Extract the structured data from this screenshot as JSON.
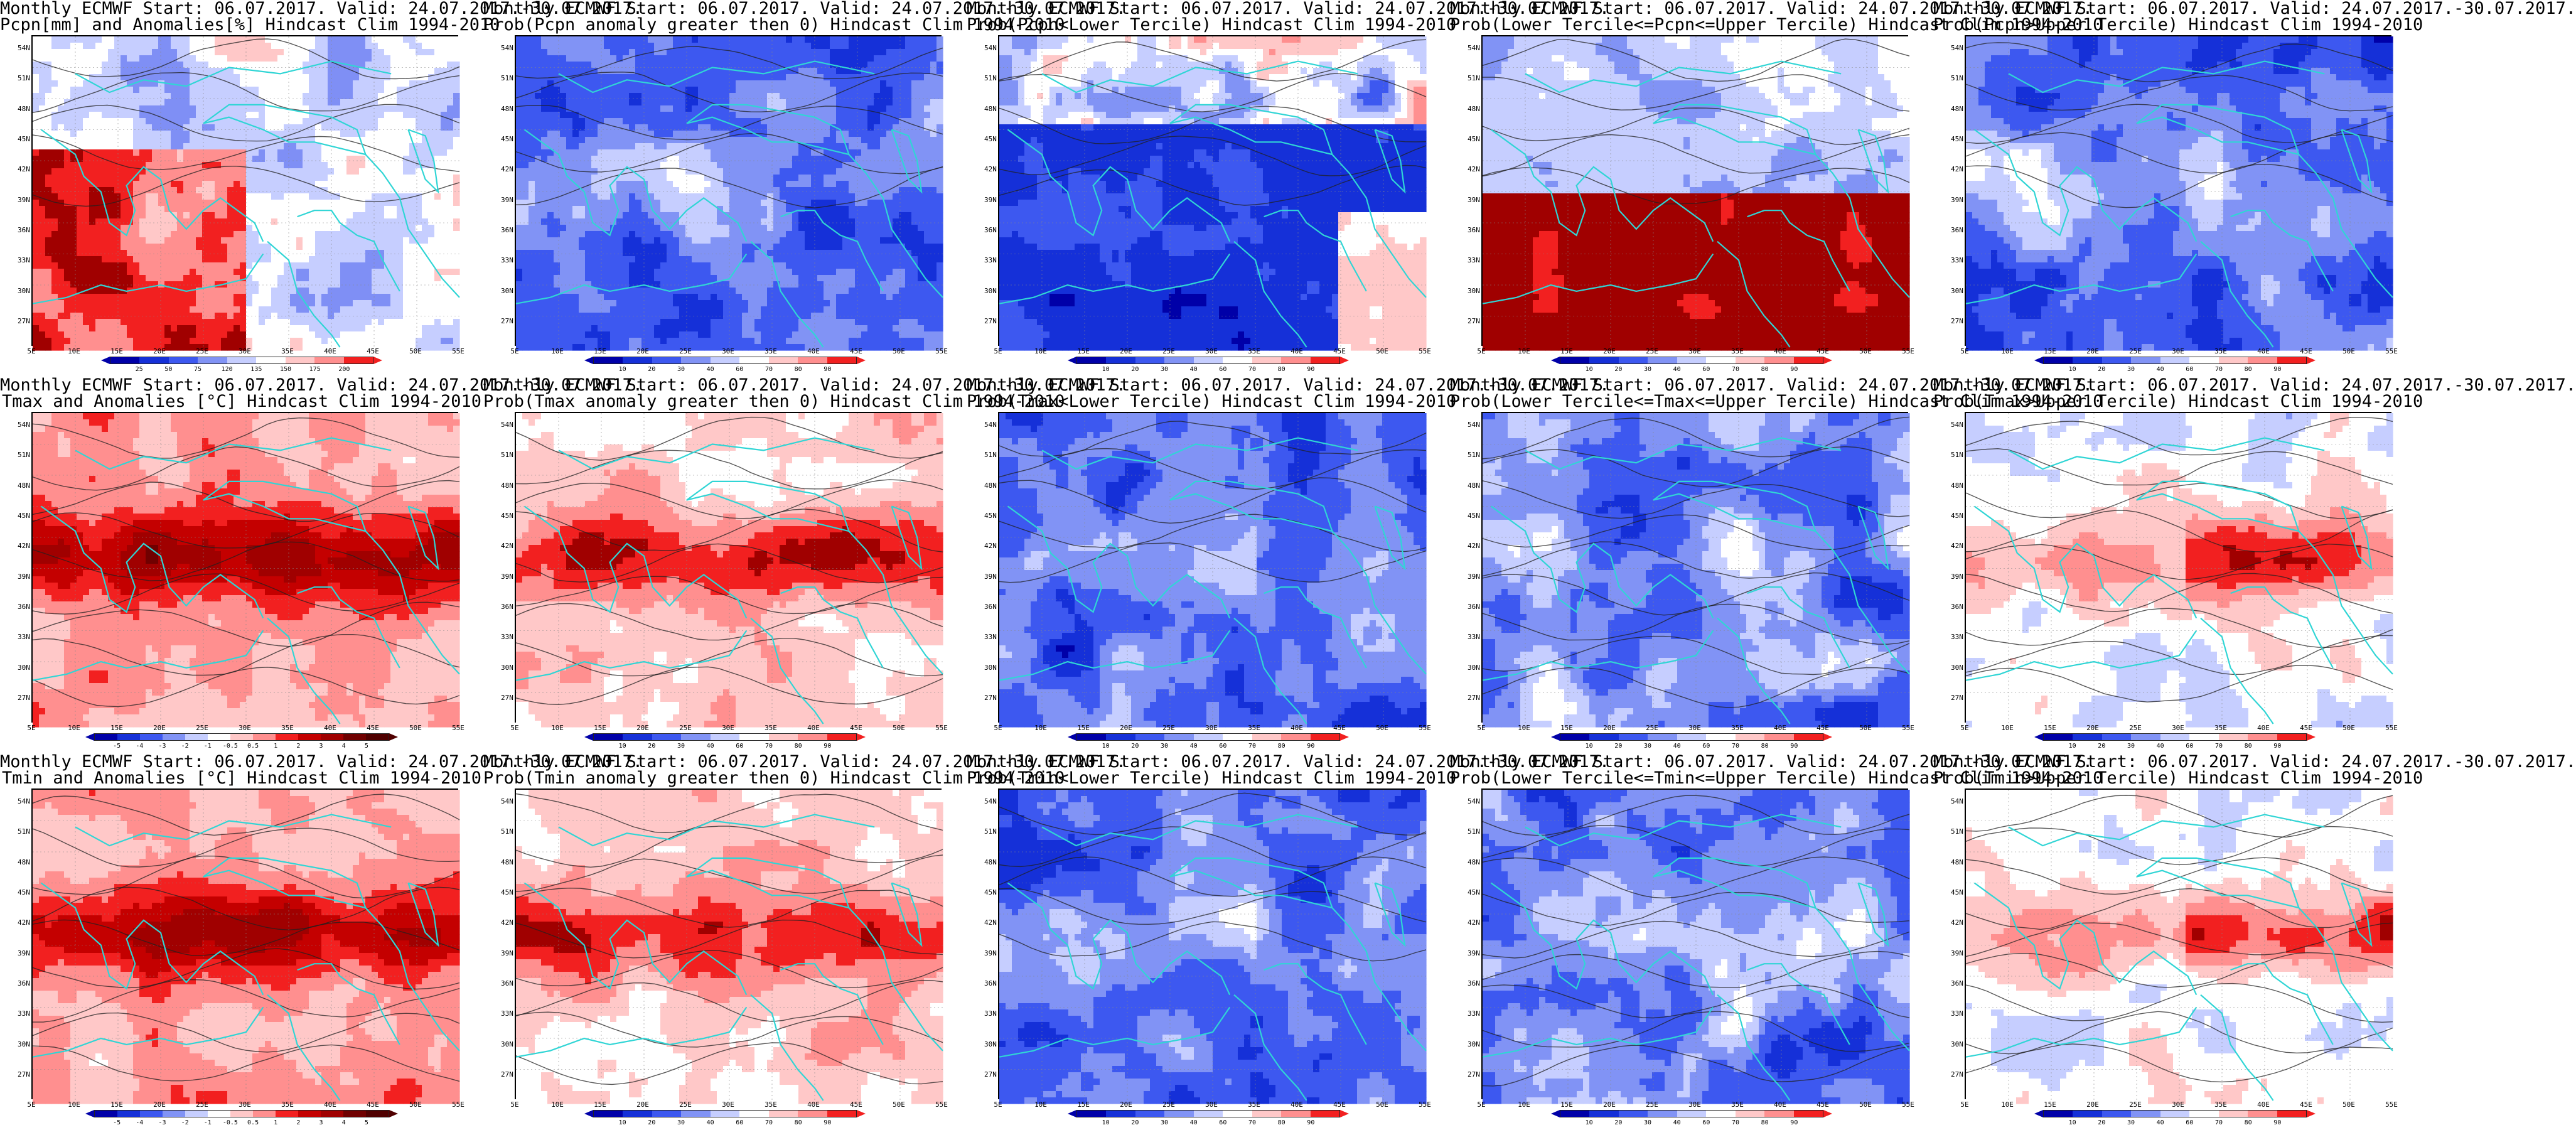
{
  "panels": [
    {
      "title1": "Monthly ECMWF Start: 06.07.2017. Valid: 24.07.2017.-30.07.2017.",
      "title2": "Pcpn[mm] and Anomalies[%] Hindcast Clim 1994-2010",
      "scheme": "precip_anom",
      "ticks": [
        "25",
        "50",
        "75",
        "120",
        "135",
        "150",
        "175",
        "200"
      ]
    },
    {
      "title1": "Monthly ECMWF Start: 06.07.2017. Valid: 24.07.2017.-30.07.2017.",
      "title2": "Prob(Pcpn anomaly greater then 0) Hindcast Clim 1994-2010",
      "scheme": "prob_low",
      "ticks": [
        "10",
        "20",
        "30",
        "40",
        "60",
        "70",
        "80",
        "90"
      ]
    },
    {
      "title1": "Monthly ECMWF Start: 06.07.2017. Valid: 24.07.2017.-30.07.2017.",
      "title2": "Prob(Pcpn<Lower Tercile) Hindcast Clim 1994-2010",
      "scheme": "prob_vlow",
      "ticks": [
        "10",
        "20",
        "30",
        "40",
        "60",
        "70",
        "80",
        "90"
      ]
    },
    {
      "title1": "Monthly ECMWF Start: 06.07.2017. Valid: 24.07.2017.-30.07.2017.",
      "title2": "Prob(Lower Tercile<=Pcpn<=Upper Tercile) Hindcast Clim 1994-2010",
      "scheme": "prob_mid_red",
      "ticks": [
        "10",
        "20",
        "30",
        "40",
        "60",
        "70",
        "80",
        "90"
      ]
    },
    {
      "title1": "Monthly ECMWF Start: 06.07.2017. Valid: 24.07.2017.-30.07.2017.",
      "title2": "Prob(Pcpn>Upper Tercile) Hindcast Clim 1994-2010",
      "scheme": "prob_low",
      "ticks": [
        "10",
        "20",
        "30",
        "40",
        "60",
        "70",
        "80",
        "90"
      ]
    },
    {
      "title1": "Monthly ECMWF Start: 06.07.2017. Valid: 24.07.2017.-30.07.2017.",
      "title2": "Tmax and Anomalies [°C] Hindcast Clim 1994-2010",
      "scheme": "temp_warm",
      "ticks": [
        "-5",
        "-4",
        "-3",
        "-2",
        "-1",
        "-0.5",
        "0.5",
        "1",
        "2",
        "3",
        "4",
        "5"
      ]
    },
    {
      "title1": "Monthly ECMWF Start: 06.07.2017. Valid: 24.07.2017.-30.07.2017.",
      "title2": "Prob(Tmax anomaly greater then 0) Hindcast Clim 1994-2010",
      "scheme": "prob_high",
      "ticks": [
        "10",
        "20",
        "30",
        "40",
        "60",
        "70",
        "80",
        "90"
      ]
    },
    {
      "title1": "Monthly ECMWF Start: 06.07.2017. Valid: 24.07.2017.-30.07.2017.",
      "title2": "Prob(Tmax<Lower Tercile) Hindcast Clim 1994-2010",
      "scheme": "prob_low",
      "ticks": [
        "10",
        "20",
        "30",
        "40",
        "60",
        "70",
        "80",
        "90"
      ]
    },
    {
      "title1": "Monthly ECMWF Start: 06.07.2017. Valid: 24.07.2017.-30.07.2017.",
      "title2": "Prob(Lower Tercile<=Tmax<=Upper Tercile) Hindcast Clim 1994-2010",
      "scheme": "prob_mix",
      "ticks": [
        "10",
        "20",
        "30",
        "40",
        "60",
        "70",
        "80",
        "90"
      ]
    },
    {
      "title1": "Monthly ECMWF Start: 06.07.2017. Valid: 24.07.2017.-30.07.2017.",
      "title2": "Prob(Tmax>Upper Tercile) Hindcast Clim 1994-2010",
      "scheme": "prob_upper",
      "ticks": [
        "10",
        "20",
        "30",
        "40",
        "60",
        "70",
        "80",
        "90"
      ]
    },
    {
      "title1": "Monthly ECMWF Start: 06.07.2017. Valid: 24.07.2017.-30.07.2017.",
      "title2": "Tmin and Anomalies [°C] Hindcast Clim 1994-2010",
      "scheme": "temp_warm",
      "ticks": [
        "-5",
        "-4",
        "-3",
        "-2",
        "-1",
        "-0.5",
        "0.5",
        "1",
        "2",
        "3",
        "4",
        "5"
      ]
    },
    {
      "title1": "Monthly ECMWF Start: 06.07.2017. Valid: 24.07.2017.-30.07.2017.",
      "title2": "Prob(Tmin anomaly greater then 0) Hindcast Clim 1994-2010",
      "scheme": "prob_high",
      "ticks": [
        "10",
        "20",
        "30",
        "40",
        "60",
        "70",
        "80",
        "90"
      ]
    },
    {
      "title1": "Monthly ECMWF Start: 06.07.2017. Valid: 24.07.2017.-30.07.2017.",
      "title2": "Prob(Tmin<Lower Tercile) Hindcast Clim 1994-2010",
      "scheme": "prob_low",
      "ticks": [
        "10",
        "20",
        "30",
        "40",
        "60",
        "70",
        "80",
        "90"
      ]
    },
    {
      "title1": "Monthly ECMWF Start: 06.07.2017. Valid: 24.07.2017.-30.07.2017.",
      "title2": "Prob(Lower Tercile<=Tmin<=Upper Tercile) Hindcast Clim 1994-2010",
      "scheme": "prob_mix",
      "ticks": [
        "10",
        "20",
        "30",
        "40",
        "60",
        "70",
        "80",
        "90"
      ]
    },
    {
      "title1": "Monthly ECMWF Start: 06.07.2017. Valid: 24.07.2017.-30.07.2017.",
      "title2": "Prob(Tmin>Upper Tercile) Hindcast Clim 1994-2010",
      "scheme": "prob_upper",
      "ticks": [
        "10",
        "20",
        "30",
        "40",
        "60",
        "70",
        "80",
        "90"
      ]
    }
  ],
  "lat_labels": [
    "54N",
    "51N",
    "48N",
    "45N",
    "42N",
    "39N",
    "36N",
    "33N",
    "30N",
    "27N"
  ],
  "lon_labels": [
    "5E",
    "10E",
    "15E",
    "20E",
    "25E",
    "30E",
    "35E",
    "40E",
    "45E",
    "50E",
    "55E"
  ],
  "colors": {
    "blue_dark": "#0000a8",
    "blue_mid": "#2b3df0",
    "blue_light": "#7f8ff5",
    "blue_pale": "#c6ceff",
    "red_pale": "#ffc8c8",
    "red_light": "#ff8f8f",
    "red_mid": "#f22020",
    "red_dark": "#a00000",
    "coast": "#30d5d5",
    "contour": "#202020"
  }
}
